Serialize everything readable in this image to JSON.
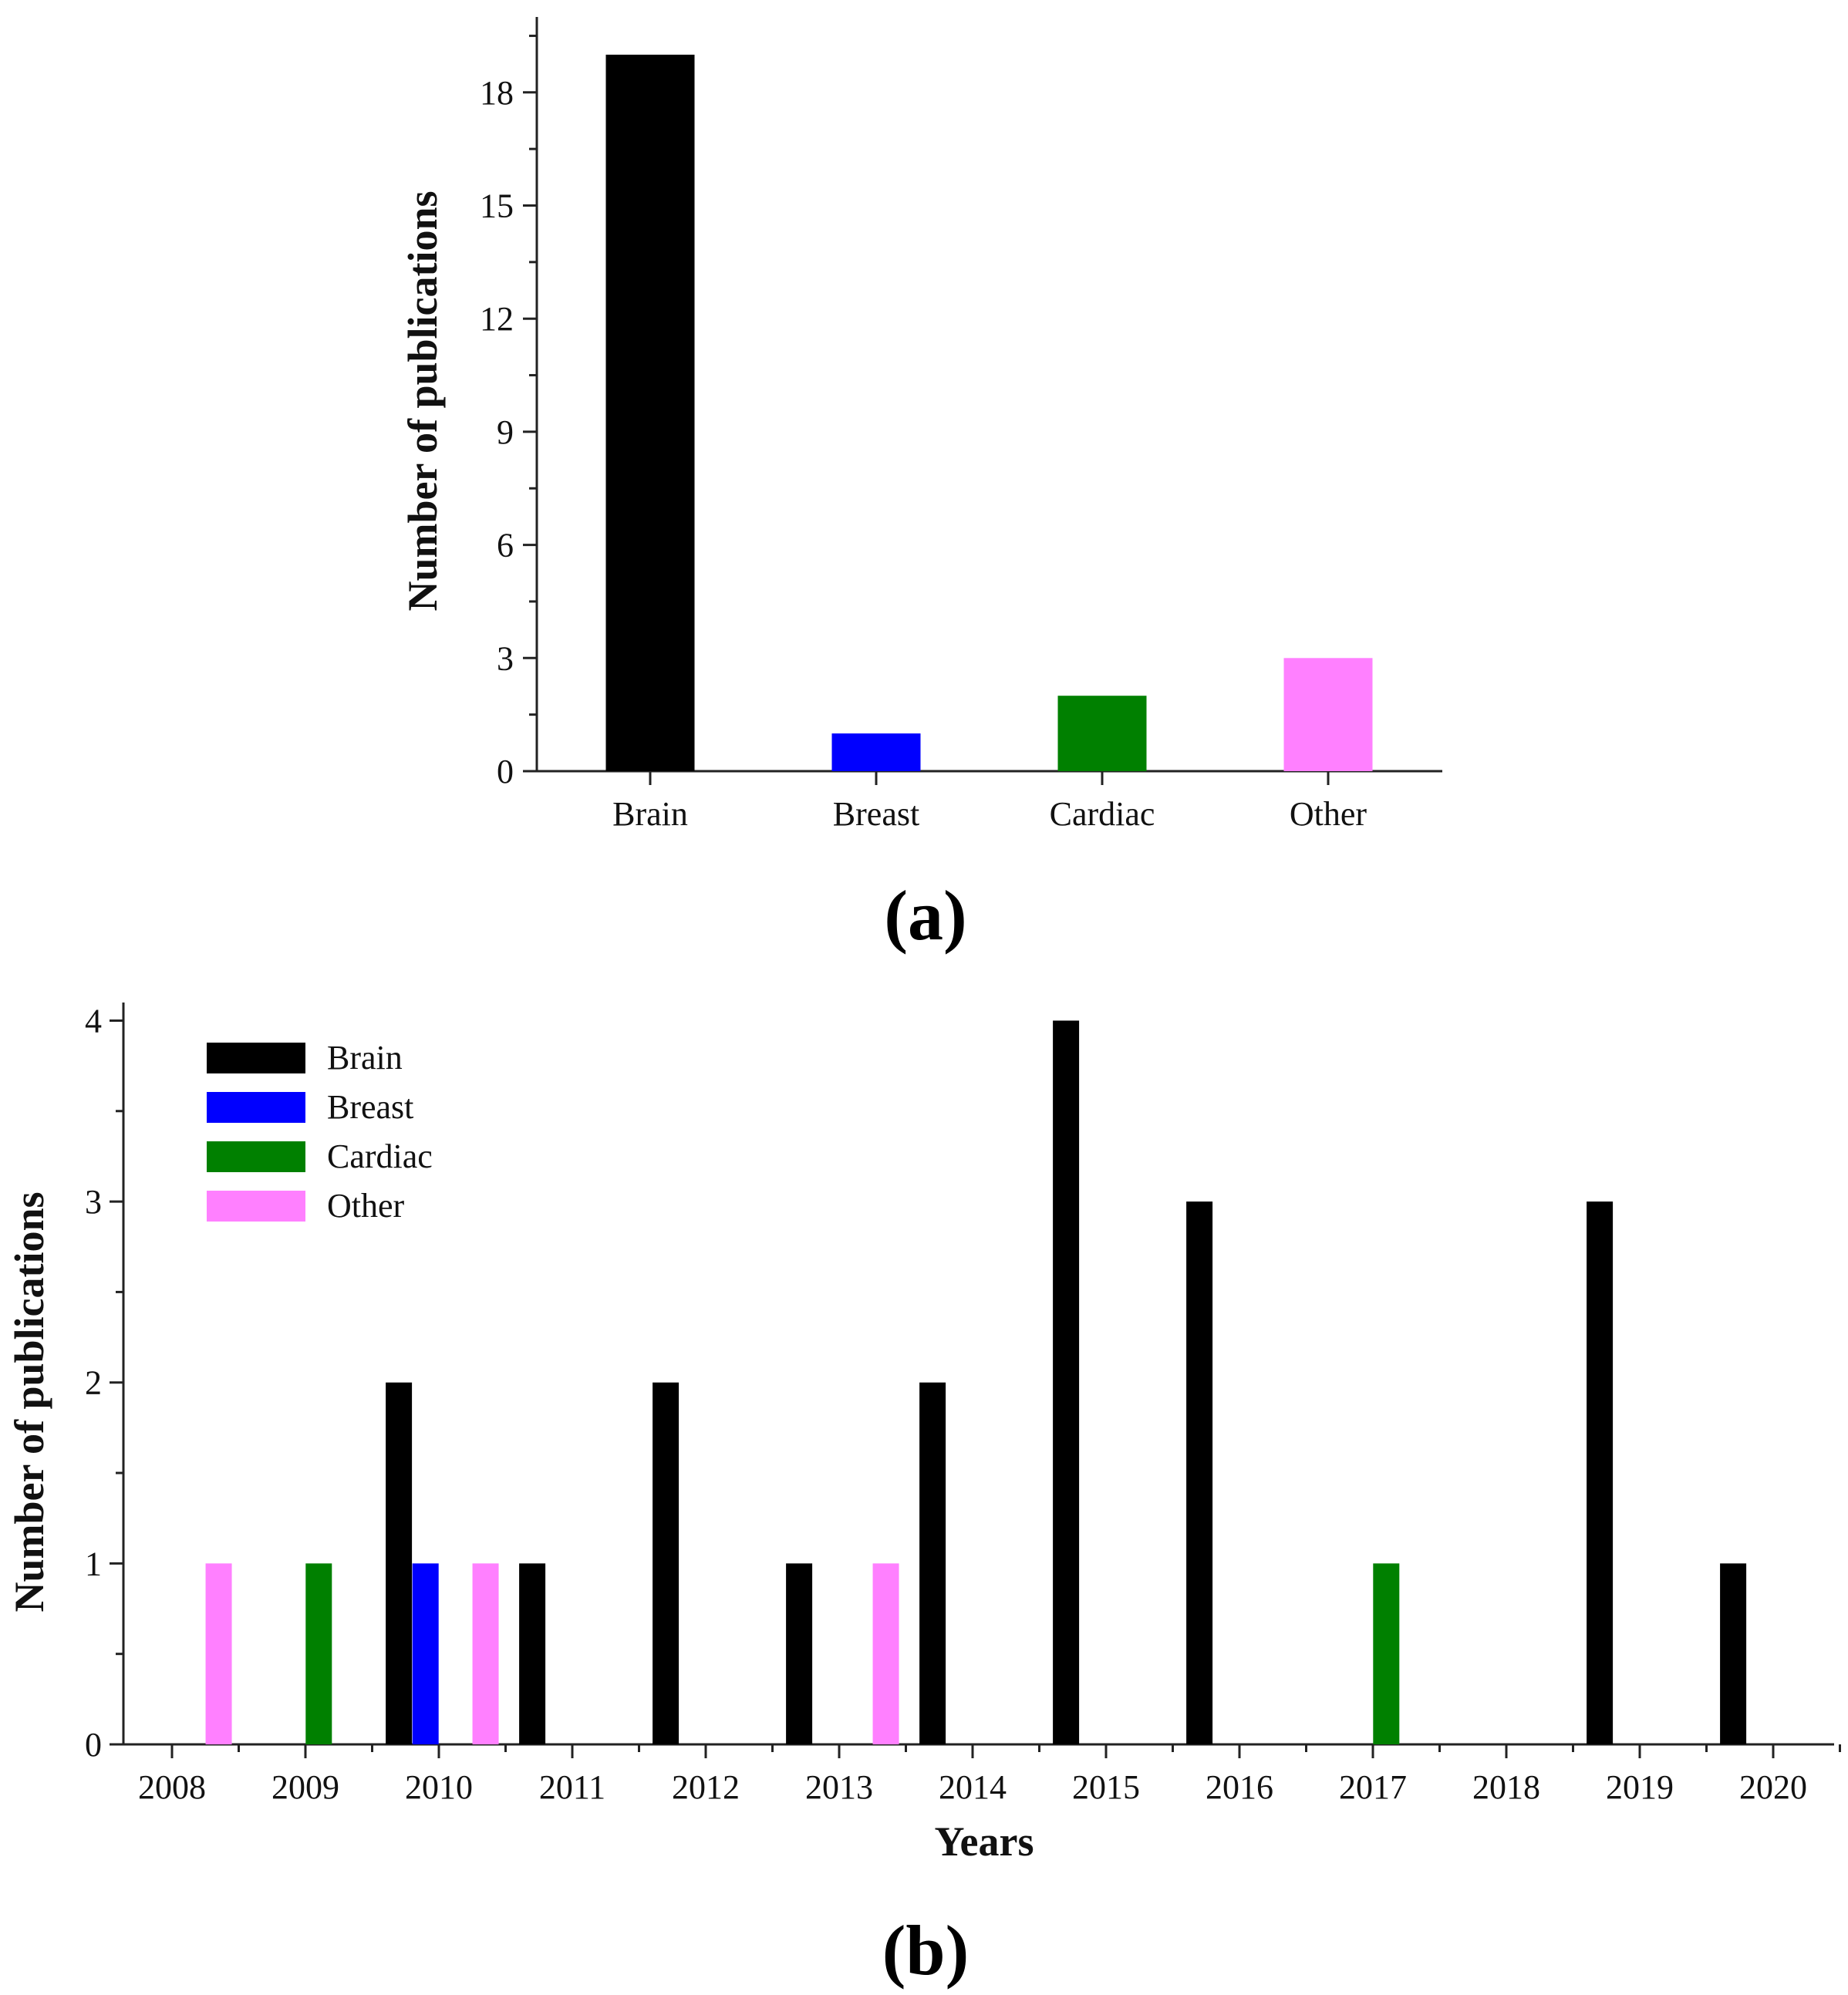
{
  "colors": {
    "Brain": "#000000",
    "Breast": "#0000ff",
    "Cardiac": "#008000",
    "Other": "#ff80ff"
  },
  "chart_data": [
    {
      "type": "bar",
      "panel_label": "(a)",
      "title": "",
      "xlabel": "",
      "ylabel": "Number of publications",
      "categories": [
        "Brain",
        "Breast",
        "Cardiac",
        "Other"
      ],
      "values": [
        19,
        1,
        2,
        3
      ],
      "ylim": [
        0,
        20
      ],
      "yticks": [
        0,
        3,
        6,
        9,
        12,
        15,
        18
      ],
      "grid": false
    },
    {
      "type": "bar",
      "panel_label": "(b)",
      "title": "",
      "xlabel": "Years",
      "ylabel": "Number of publications",
      "x": [
        "2008",
        "2009",
        "2010",
        "2011",
        "2012",
        "2013",
        "2014",
        "2015",
        "2016",
        "2017",
        "2018",
        "2019",
        "2020"
      ],
      "ylim": [
        0,
        4.1
      ],
      "yticks": [
        0,
        1,
        2,
        3,
        4
      ],
      "legend_position": "top-left",
      "legend": [
        "Brain",
        "Breast",
        "Cardiac",
        "Other"
      ],
      "grid": false,
      "series": [
        {
          "name": "Brain",
          "points": [
            {
              "x": 2009.7,
              "y": 2
            },
            {
              "x": 2010.7,
              "y": 1
            },
            {
              "x": 2011.7,
              "y": 2
            },
            {
              "x": 2012.7,
              "y": 1
            },
            {
              "x": 2013.7,
              "y": 2
            },
            {
              "x": 2014.7,
              "y": 4
            },
            {
              "x": 2015.7,
              "y": 3
            },
            {
              "x": 2018.7,
              "y": 3
            },
            {
              "x": 2019.7,
              "y": 1
            }
          ]
        },
        {
          "name": "Breast",
          "points": [
            {
              "x": 2009.9,
              "y": 1
            }
          ]
        },
        {
          "name": "Cardiac",
          "points": [
            {
              "x": 2009.1,
              "y": 1
            },
            {
              "x": 2017.1,
              "y": 1
            }
          ]
        },
        {
          "name": "Other",
          "points": [
            {
              "x": 2008.35,
              "y": 1
            },
            {
              "x": 2010.35,
              "y": 1
            },
            {
              "x": 2013.35,
              "y": 1
            }
          ]
        }
      ]
    }
  ]
}
